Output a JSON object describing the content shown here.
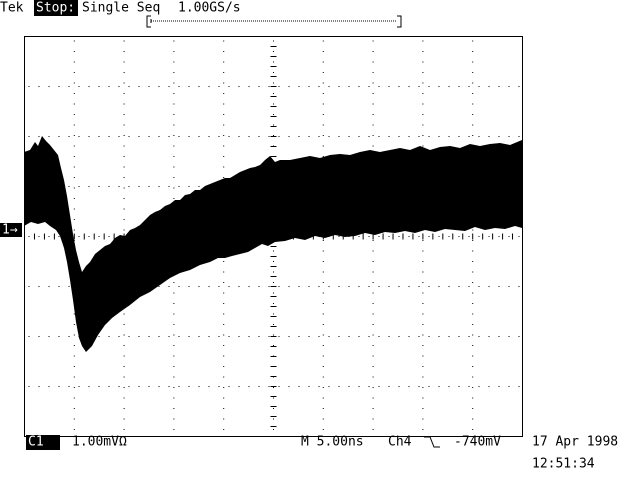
{
  "header": {
    "brand": "Tek",
    "state": "Stop:",
    "mode": "Single Seq",
    "sample_rate": "1.00GS/s"
  },
  "channel_marker": "1→",
  "footer": {
    "channel": "C1",
    "scale": "1.00mVΩ",
    "timebase": "M 5.00ns",
    "trigger_source": "Ch4",
    "trigger_level": "-740mV",
    "date": "17 Apr 1998",
    "time": "12:51:34"
  }
}
